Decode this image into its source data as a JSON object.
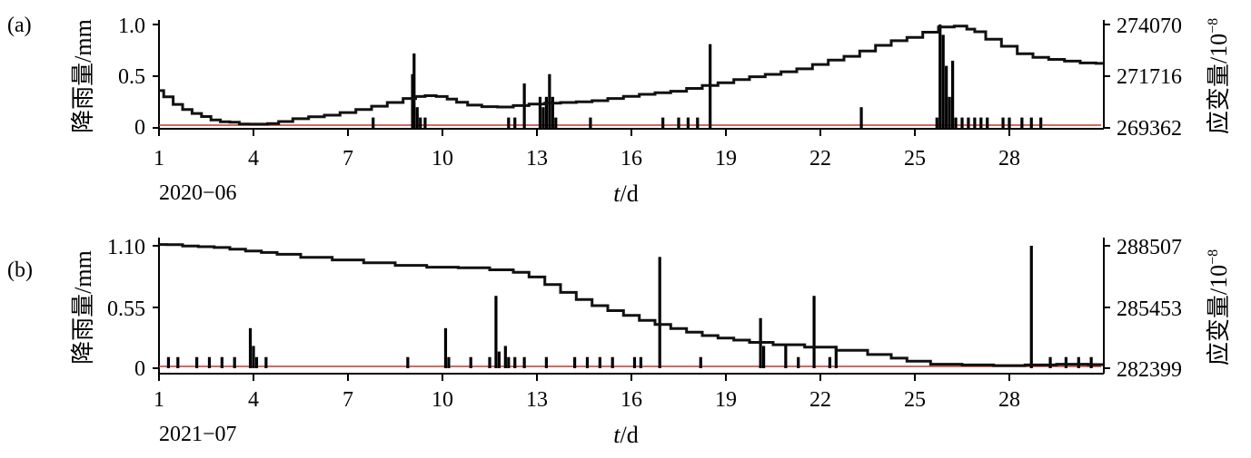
{
  "chart_data": [
    {
      "type": "line",
      "panel_label": "(a)",
      "date_label": "2020−06",
      "xlabel": {
        "var": "t",
        "unit": "/d"
      },
      "ylabel_left": "降雨量/mm",
      "ylabel_right": {
        "base": "应变量/10",
        "exp": "−8"
      },
      "x_ticks": [
        1,
        4,
        7,
        10,
        13,
        16,
        19,
        22,
        25,
        28
      ],
      "xlim": [
        1,
        31
      ],
      "y_left_ticks": [
        "1.0",
        "0.5",
        "0"
      ],
      "y_left_tick_values": [
        1.0,
        0.5,
        0
      ],
      "ylim_left": [
        0,
        1.0
      ],
      "y_right_ticks": [
        "274070",
        "271716",
        "269362"
      ],
      "y_right_tick_values": [
        274070,
        271716,
        269362
      ],
      "ylim_right": [
        269362,
        274070
      ],
      "baseline_color": "#c0392b",
      "strain": {
        "x": [
          1.0,
          1.3,
          1.6,
          1.9,
          2.2,
          2.5,
          2.8,
          3.1,
          3.4,
          3.7,
          4.0,
          4.3,
          4.6,
          5.0,
          5.5,
          6.0,
          6.5,
          7.0,
          7.5,
          8.0,
          8.5,
          9.0,
          9.3,
          9.6,
          10.0,
          10.3,
          10.6,
          11.0,
          11.5,
          12.0,
          12.5,
          13.0,
          13.5,
          14.0,
          14.5,
          15.0,
          15.5,
          16.0,
          16.5,
          17.0,
          17.5,
          18.0,
          18.5,
          19.0,
          19.5,
          20.0,
          20.5,
          21.0,
          21.5,
          22.0,
          22.5,
          23.0,
          23.5,
          24.0,
          24.5,
          25.0,
          25.5,
          26.0,
          26.5,
          26.8,
          27.0,
          27.5,
          28.0,
          28.5,
          29.0,
          29.5,
          30.0,
          30.5,
          31.0
        ],
        "y": [
          271060,
          270780,
          270430,
          270200,
          270020,
          269880,
          269720,
          269640,
          269620,
          269540,
          269530,
          269530,
          269560,
          269650,
          269780,
          269870,
          269940,
          270060,
          270200,
          270350,
          270520,
          270700,
          270790,
          270830,
          270790,
          270670,
          270530,
          270400,
          270330,
          270310,
          270380,
          270450,
          270490,
          270520,
          270550,
          270600,
          270700,
          270800,
          270890,
          270960,
          271030,
          271160,
          271290,
          271420,
          271560,
          271690,
          271800,
          271920,
          272050,
          272250,
          272450,
          272620,
          272860,
          273120,
          273330,
          273480,
          273720,
          273960,
          274000,
          273860,
          273740,
          273400,
          273080,
          272740,
          272570,
          272480,
          272400,
          272320,
          272300
        ]
      },
      "rain": {
        "x": [
          7.8,
          9.05,
          9.1,
          9.2,
          9.3,
          9.45,
          12.1,
          12.3,
          12.6,
          13.1,
          13.2,
          13.3,
          13.4,
          13.5,
          13.6,
          14.7,
          17.0,
          17.5,
          17.8,
          18.1,
          18.5,
          23.3,
          25.7,
          25.8,
          25.9,
          26.0,
          26.1,
          26.2,
          26.3,
          26.5,
          26.7,
          26.9,
          27.1,
          27.3,
          27.8,
          28.0,
          28.4,
          28.7,
          29.0
        ],
        "y": [
          0.1,
          0.52,
          0.72,
          0.2,
          0.1,
          0.1,
          0.1,
          0.1,
          0.43,
          0.3,
          0.2,
          0.3,
          0.52,
          0.3,
          0.1,
          0.1,
          0.1,
          0.1,
          0.1,
          0.1,
          0.81,
          0.2,
          0.1,
          1.0,
          0.9,
          0.6,
          0.3,
          0.65,
          0.1,
          0.1,
          0.1,
          0.1,
          0.1,
          0.1,
          0.1,
          0.1,
          0.1,
          0.1,
          0.1
        ]
      }
    },
    {
      "type": "line",
      "panel_label": "(b)",
      "date_label": "2021−07",
      "xlabel": {
        "var": "t",
        "unit": "/d"
      },
      "ylabel_left": "降雨量/mm",
      "ylabel_right": {
        "base": "应变量/10",
        "exp": "−8"
      },
      "x_ticks": [
        1,
        4,
        7,
        10,
        13,
        16,
        19,
        22,
        25,
        28
      ],
      "xlim": [
        1,
        31
      ],
      "y_left_ticks": [
        "1.10",
        "0.55",
        "0"
      ],
      "y_left_tick_values": [
        1.1,
        0.55,
        0
      ],
      "ylim_left": [
        0,
        1.1
      ],
      "y_right_ticks": [
        "288507",
        "285453",
        "282399"
      ],
      "y_right_tick_values": [
        288507,
        285453,
        282399
      ],
      "ylim_right": [
        282399,
        288507
      ],
      "baseline_color": "#c0392b",
      "strain": {
        "x": [
          1.0,
          1.5,
          2.0,
          2.5,
          3.0,
          3.5,
          4.0,
          4.5,
          5.0,
          6.0,
          7.0,
          8.0,
          9.0,
          10.0,
          11.0,
          12.0,
          12.5,
          13.0,
          13.5,
          14.0,
          14.5,
          15.0,
          15.5,
          16.0,
          16.5,
          17.0,
          17.5,
          18.0,
          18.5,
          19.0,
          19.5,
          20.0,
          21.0,
          22.0,
          23.0,
          24.0,
          24.5,
          25.0,
          26.0,
          27.0,
          28.0,
          29.0,
          30.0,
          31.0
        ],
        "y": [
          288570,
          288560,
          288500,
          288460,
          288420,
          288340,
          288250,
          288170,
          288080,
          287930,
          287800,
          287660,
          287530,
          287440,
          287410,
          287310,
          287180,
          286950,
          286570,
          286180,
          285830,
          285520,
          285270,
          285030,
          284790,
          284580,
          284380,
          284200,
          284030,
          283900,
          283800,
          283690,
          283570,
          283450,
          283290,
          283080,
          282900,
          282750,
          282600,
          282560,
          282530,
          282560,
          282600,
          282580
        ]
      },
      "rain": {
        "x": [
          1.3,
          1.6,
          2.2,
          2.6,
          3.0,
          3.4,
          3.9,
          4.0,
          4.1,
          4.4,
          8.9,
          10.1,
          10.2,
          10.9,
          11.5,
          11.7,
          11.8,
          12.0,
          12.1,
          12.3,
          12.6,
          13.3,
          14.2,
          14.6,
          15.0,
          15.4,
          16.1,
          16.3,
          16.9,
          18.2,
          20.1,
          20.2,
          20.9,
          21.3,
          21.8,
          22.3,
          22.5,
          28.7,
          29.3,
          29.8,
          30.2,
          30.6
        ],
        "y": [
          0.1,
          0.1,
          0.1,
          0.1,
          0.1,
          0.1,
          0.36,
          0.2,
          0.1,
          0.1,
          0.1,
          0.36,
          0.1,
          0.1,
          0.1,
          0.65,
          0.15,
          0.2,
          0.1,
          0.1,
          0.1,
          0.1,
          0.1,
          0.1,
          0.1,
          0.1,
          0.1,
          0.1,
          1.0,
          0.1,
          0.45,
          0.2,
          0.2,
          0.1,
          0.65,
          0.1,
          0.2,
          1.1,
          0.1,
          0.1,
          0.1,
          0.1
        ]
      }
    }
  ]
}
